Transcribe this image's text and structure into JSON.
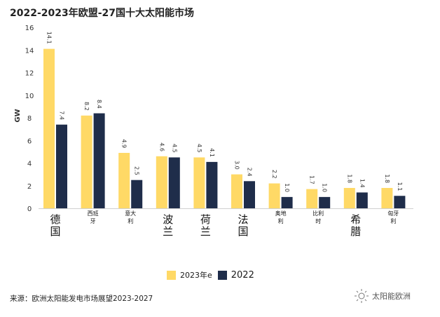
{
  "colors": {
    "series_2023": "#FFD966",
    "series_2022": "#1F2D4A"
  },
  "chart_data": {
    "type": "bar",
    "title": "2022-2023年欧盟-27国十大太阳能市场",
    "ylabel": "GW",
    "xlabel": "",
    "ylim": [
      0,
      16
    ],
    "yticks": [
      0,
      2,
      4,
      6,
      8,
      10,
      12,
      14,
      16
    ],
    "categories": [
      "德国",
      "西班牙",
      "意大利",
      "波兰",
      "荷兰",
      "法国",
      "奥地利",
      "比利时",
      "希腊",
      "匈牙利"
    ],
    "category_labels": [
      {
        "lines": [
          "德",
          "国"
        ],
        "size": "big"
      },
      {
        "lines": [
          "西班",
          "牙"
        ],
        "size": "small"
      },
      {
        "lines": [
          "意大",
          "利"
        ],
        "size": "small"
      },
      {
        "lines": [
          "波",
          "兰"
        ],
        "size": "big"
      },
      {
        "lines": [
          "荷",
          "兰"
        ],
        "size": "big"
      },
      {
        "lines": [
          "法",
          "国"
        ],
        "size": "big"
      },
      {
        "lines": [
          "奥地",
          "利"
        ],
        "size": "small"
      },
      {
        "lines": [
          "比利",
          "时"
        ],
        "size": "small"
      },
      {
        "lines": [
          "希",
          "腊"
        ],
        "size": "big"
      },
      {
        "lines": [
          "匈牙",
          "利"
        ],
        "size": "small"
      }
    ],
    "series": [
      {
        "name": "2023年e",
        "values": [
          14.1,
          8.2,
          4.9,
          4.6,
          4.5,
          3.0,
          2.2,
          1.7,
          1.8,
          1.8
        ],
        "labels": [
          "14.1",
          "8.2",
          "4.9",
          "4.6",
          "4.5",
          "3.0",
          "2.2",
          "1.7",
          "1.8",
          "1.8"
        ]
      },
      {
        "name": "2022",
        "values": [
          7.4,
          8.4,
          2.5,
          4.5,
          4.1,
          2.4,
          1.0,
          1.0,
          1.4,
          1.1
        ],
        "labels": [
          "7.4",
          "8.4",
          "2.5",
          "4.5",
          "4.1",
          "2.4",
          "1.0",
          "1.0",
          "1.4",
          "1.1"
        ]
      }
    ]
  },
  "legend": {
    "item_2023": "2023年e",
    "item_2022": "2022"
  },
  "footer": {
    "source": "来源：欧洲太阳能发电市场展望2023-2027",
    "brand": "太阳能欧洲"
  },
  "icons": {
    "brand_logo": "sun-ring-icon"
  }
}
